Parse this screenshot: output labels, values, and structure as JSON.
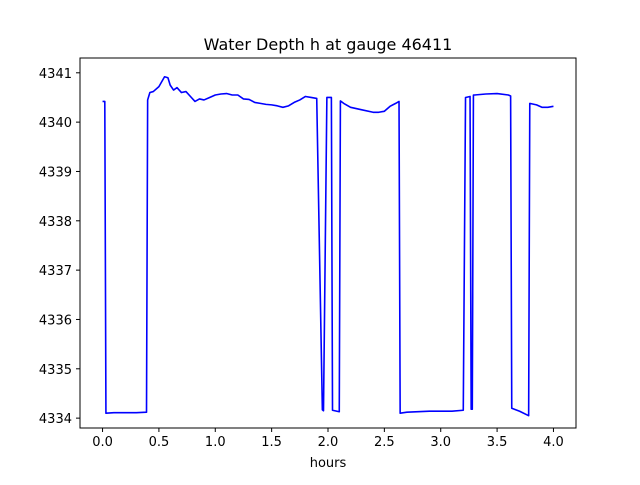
{
  "chart_data": {
    "type": "line",
    "title": "Water Depth h at gauge 46411",
    "xlabel": "hours",
    "ylabel": "",
    "xlim": [
      -0.2,
      4.2
    ],
    "ylim": [
      4333.8,
      4341.3
    ],
    "xticks": [
      0.0,
      0.5,
      1.0,
      1.5,
      2.0,
      2.5,
      3.0,
      3.5,
      4.0
    ],
    "xtick_labels": [
      "0.0",
      "0.5",
      "1.0",
      "1.5",
      "2.0",
      "2.5",
      "3.0",
      "3.5",
      "4.0"
    ],
    "yticks": [
      4334,
      4335,
      4336,
      4337,
      4338,
      4339,
      4340,
      4341
    ],
    "ytick_labels": [
      "4334",
      "4335",
      "4336",
      "4337",
      "4338",
      "4339",
      "4340",
      "4341"
    ],
    "grid": false,
    "legend": "none",
    "series": [
      {
        "color": "#0000ff",
        "x": [
          0.0,
          0.02,
          0.03,
          0.1,
          0.2,
          0.3,
          0.39,
          0.4,
          0.42,
          0.45,
          0.5,
          0.55,
          0.58,
          0.6,
          0.63,
          0.66,
          0.7,
          0.74,
          0.78,
          0.82,
          0.86,
          0.9,
          0.95,
          1.0,
          1.05,
          1.1,
          1.15,
          1.2,
          1.25,
          1.3,
          1.35,
          1.4,
          1.45,
          1.5,
          1.55,
          1.6,
          1.65,
          1.7,
          1.75,
          1.8,
          1.85,
          1.9,
          1.95,
          1.96,
          1.99,
          2.0,
          2.03,
          2.04,
          2.06,
          2.1,
          2.11,
          2.14,
          2.2,
          2.3,
          2.4,
          2.45,
          2.5,
          2.55,
          2.6,
          2.63,
          2.64,
          2.7,
          2.8,
          2.9,
          3.0,
          3.1,
          3.2,
          3.22,
          3.26,
          3.27,
          3.28,
          3.29,
          3.3,
          3.35,
          3.4,
          3.5,
          3.6,
          3.62,
          3.63,
          3.7,
          3.78,
          3.79,
          3.85,
          3.9,
          3.95,
          4.0
        ],
        "y": [
          4340.42,
          4340.42,
          4334.1,
          4334.11,
          4334.11,
          4334.11,
          4334.12,
          4340.45,
          4340.6,
          4340.62,
          4340.72,
          4340.92,
          4340.9,
          4340.75,
          4340.65,
          4340.7,
          4340.6,
          4340.62,
          4340.52,
          4340.42,
          4340.47,
          4340.45,
          4340.5,
          4340.55,
          4340.57,
          4340.58,
          4340.55,
          4340.55,
          4340.47,
          4340.46,
          4340.4,
          4340.38,
          4340.36,
          4340.35,
          4340.33,
          4340.3,
          4340.33,
          4340.4,
          4340.45,
          4340.52,
          4340.5,
          4340.48,
          4334.17,
          4334.15,
          4340.5,
          4340.5,
          4340.5,
          4334.16,
          4334.15,
          4334.13,
          4340.43,
          4340.38,
          4340.3,
          4340.25,
          4340.2,
          4340.2,
          4340.22,
          4340.32,
          4340.38,
          4340.42,
          4334.1,
          4334.12,
          4334.13,
          4334.14,
          4334.14,
          4334.14,
          4334.16,
          4340.5,
          4340.52,
          4334.18,
          4334.18,
          4340.55,
          4340.55,
          4340.56,
          4340.57,
          4340.58,
          4340.55,
          4340.53,
          4334.2,
          4334.14,
          4334.05,
          4340.38,
          4340.35,
          4340.3,
          4340.3,
          4340.32
        ]
      }
    ]
  }
}
